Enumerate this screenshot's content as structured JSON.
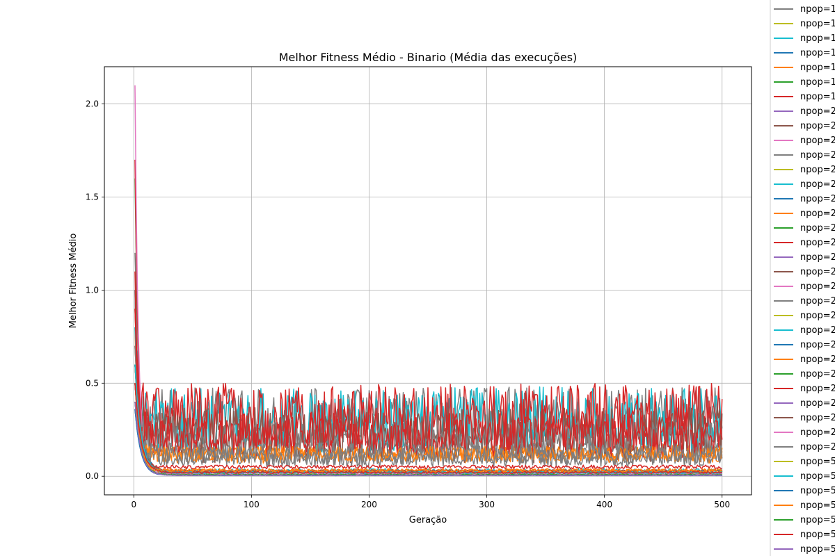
{
  "chart_data": {
    "type": "line",
    "title": "Melhor Fitness Médio - Binario (Média das execuções)",
    "xlabel": "Geração",
    "ylabel": "Melhor Fitness Médio",
    "xlim": [
      -25,
      525
    ],
    "ylim": [
      -0.1,
      2.2
    ],
    "xticks": [
      0,
      100,
      200,
      300,
      400,
      500
    ],
    "yticks": [
      0.0,
      0.5,
      1.0,
      1.5,
      2.0
    ],
    "xtick_labels": [
      "0",
      "100",
      "200",
      "300",
      "400",
      "500"
    ],
    "ytick_labels": [
      "0.0",
      "0.5",
      "1.0",
      "1.5",
      "2.0"
    ],
    "grid": true,
    "legend_position": "outside-right",
    "x_range": [
      1,
      500
    ],
    "series": [
      {
        "name": "npop=1",
        "color": "#7f7f7f",
        "start": 1.2,
        "floor": 0.3,
        "noise": 0.18,
        "decay": 0.6
      },
      {
        "name": "npop=1",
        "color": "#bcbd22",
        "start": 0.9,
        "floor": 0.01,
        "noise": 0.003,
        "decay": 0.25
      },
      {
        "name": "npop=1",
        "color": "#17becf",
        "start": 1.0,
        "floor": 0.3,
        "noise": 0.18,
        "decay": 0.6
      },
      {
        "name": "npop=1",
        "color": "#1f77b4",
        "start": 0.6,
        "floor": 0.005,
        "noise": 0.002,
        "decay": 0.2
      },
      {
        "name": "npop=1",
        "color": "#ff7f0e",
        "start": 0.8,
        "floor": 0.12,
        "noise": 0.05,
        "decay": 0.4
      },
      {
        "name": "npop=1",
        "color": "#2ca02c",
        "start": 1.6,
        "floor": 0.01,
        "noise": 0.003,
        "decay": 0.3
      },
      {
        "name": "npop=1",
        "color": "#d62728",
        "start": 1.7,
        "floor": 0.32,
        "noise": 0.18,
        "decay": 0.5
      },
      {
        "name": "npop=2",
        "color": "#9467bd",
        "start": 0.7,
        "floor": 0.02,
        "noise": 0.005,
        "decay": 0.2
      },
      {
        "name": "npop=2",
        "color": "#8c564b",
        "start": 1.0,
        "floor": 0.22,
        "noise": 0.15,
        "decay": 0.5
      },
      {
        "name": "npop=2",
        "color": "#e377c2",
        "start": 2.1,
        "floor": 0.01,
        "noise": 0.003,
        "decay": 0.35
      },
      {
        "name": "npop=2",
        "color": "#7f7f7f",
        "start": 0.9,
        "floor": 0.2,
        "noise": 0.09,
        "decay": 0.4
      },
      {
        "name": "npop=2",
        "color": "#bcbd22",
        "start": 0.6,
        "floor": 0.02,
        "noise": 0.005,
        "decay": 0.2
      },
      {
        "name": "npop=2",
        "color": "#17becf",
        "start": 0.8,
        "floor": 0.03,
        "noise": 0.01,
        "decay": 0.25
      },
      {
        "name": "npop=2",
        "color": "#1f77b4",
        "start": 0.5,
        "floor": 0.01,
        "noise": 0.003,
        "decay": 0.15
      },
      {
        "name": "npop=2",
        "color": "#ff7f0e",
        "start": 0.7,
        "floor": 0.03,
        "noise": 0.01,
        "decay": 0.25
      },
      {
        "name": "npop=2",
        "color": "#2ca02c",
        "start": 0.5,
        "floor": 0.008,
        "noise": 0.002,
        "decay": 0.2
      },
      {
        "name": "npop=2",
        "color": "#d62728",
        "start": 1.1,
        "floor": 0.22,
        "noise": 0.12,
        "decay": 0.5
      },
      {
        "name": "npop=2",
        "color": "#9467bd",
        "start": 0.5,
        "floor": 0.01,
        "noise": 0.002,
        "decay": 0.2
      },
      {
        "name": "npop=2",
        "color": "#8c564b",
        "start": 0.6,
        "floor": 0.02,
        "noise": 0.005,
        "decay": 0.2
      },
      {
        "name": "npop=2",
        "color": "#e377c2",
        "start": 0.5,
        "floor": 0.01,
        "noise": 0.002,
        "decay": 0.2
      },
      {
        "name": "npop=2",
        "color": "#7f7f7f",
        "start": 0.7,
        "floor": 0.1,
        "noise": 0.05,
        "decay": 0.3
      },
      {
        "name": "npop=2",
        "color": "#bcbd22",
        "start": 0.4,
        "floor": 0.01,
        "noise": 0.002,
        "decay": 0.2
      },
      {
        "name": "npop=2",
        "color": "#17becf",
        "start": 0.6,
        "floor": 0.02,
        "noise": 0.005,
        "decay": 0.2
      },
      {
        "name": "npop=2",
        "color": "#1f77b4",
        "start": 0.36,
        "floor": 0.005,
        "noise": 0.001,
        "decay": 0.2
      },
      {
        "name": "npop=2",
        "color": "#ff7f0e",
        "start": 0.6,
        "floor": 0.12,
        "noise": 0.04,
        "decay": 0.3
      },
      {
        "name": "npop=2",
        "color": "#2ca02c",
        "start": 0.5,
        "floor": 0.01,
        "noise": 0.002,
        "decay": 0.2
      },
      {
        "name": "npop=2",
        "color": "#d62728",
        "start": 0.9,
        "floor": 0.05,
        "noise": 0.01,
        "decay": 0.3
      },
      {
        "name": "npop=2",
        "color": "#9467bd",
        "start": 0.5,
        "floor": 0.01,
        "noise": 0.002,
        "decay": 0.2
      },
      {
        "name": "npop=2",
        "color": "#8c564b",
        "start": 0.6,
        "floor": 0.03,
        "noise": 0.005,
        "decay": 0.2
      },
      {
        "name": "npop=2",
        "color": "#e377c2",
        "start": 0.5,
        "floor": 0.01,
        "noise": 0.002,
        "decay": 0.2
      },
      {
        "name": "npop=2",
        "color": "#7f7f7f",
        "start": 0.6,
        "floor": 0.12,
        "noise": 0.06,
        "decay": 0.3
      },
      {
        "name": "npop=5",
        "color": "#bcbd22",
        "start": 0.5,
        "floor": 0.005,
        "noise": 0.001,
        "decay": 0.2
      },
      {
        "name": "npop=5",
        "color": "#17becf",
        "start": 0.6,
        "floor": 0.02,
        "noise": 0.005,
        "decay": 0.2
      },
      {
        "name": "npop=5",
        "color": "#1f77b4",
        "start": 0.36,
        "floor": 0.005,
        "noise": 0.001,
        "decay": 0.2
      },
      {
        "name": "npop=5",
        "color": "#ff7f0e",
        "start": 0.5,
        "floor": 0.03,
        "noise": 0.01,
        "decay": 0.25
      },
      {
        "name": "npop=5",
        "color": "#2ca02c",
        "start": 0.4,
        "floor": 0.008,
        "noise": 0.002,
        "decay": 0.2
      },
      {
        "name": "npop=5",
        "color": "#d62728",
        "start": 0.5,
        "floor": 0.02,
        "noise": 0.005,
        "decay": 0.2
      },
      {
        "name": "npop=5",
        "color": "#9467bd",
        "start": 0.4,
        "floor": 0.005,
        "noise": 0.001,
        "decay": 0.2
      }
    ]
  }
}
